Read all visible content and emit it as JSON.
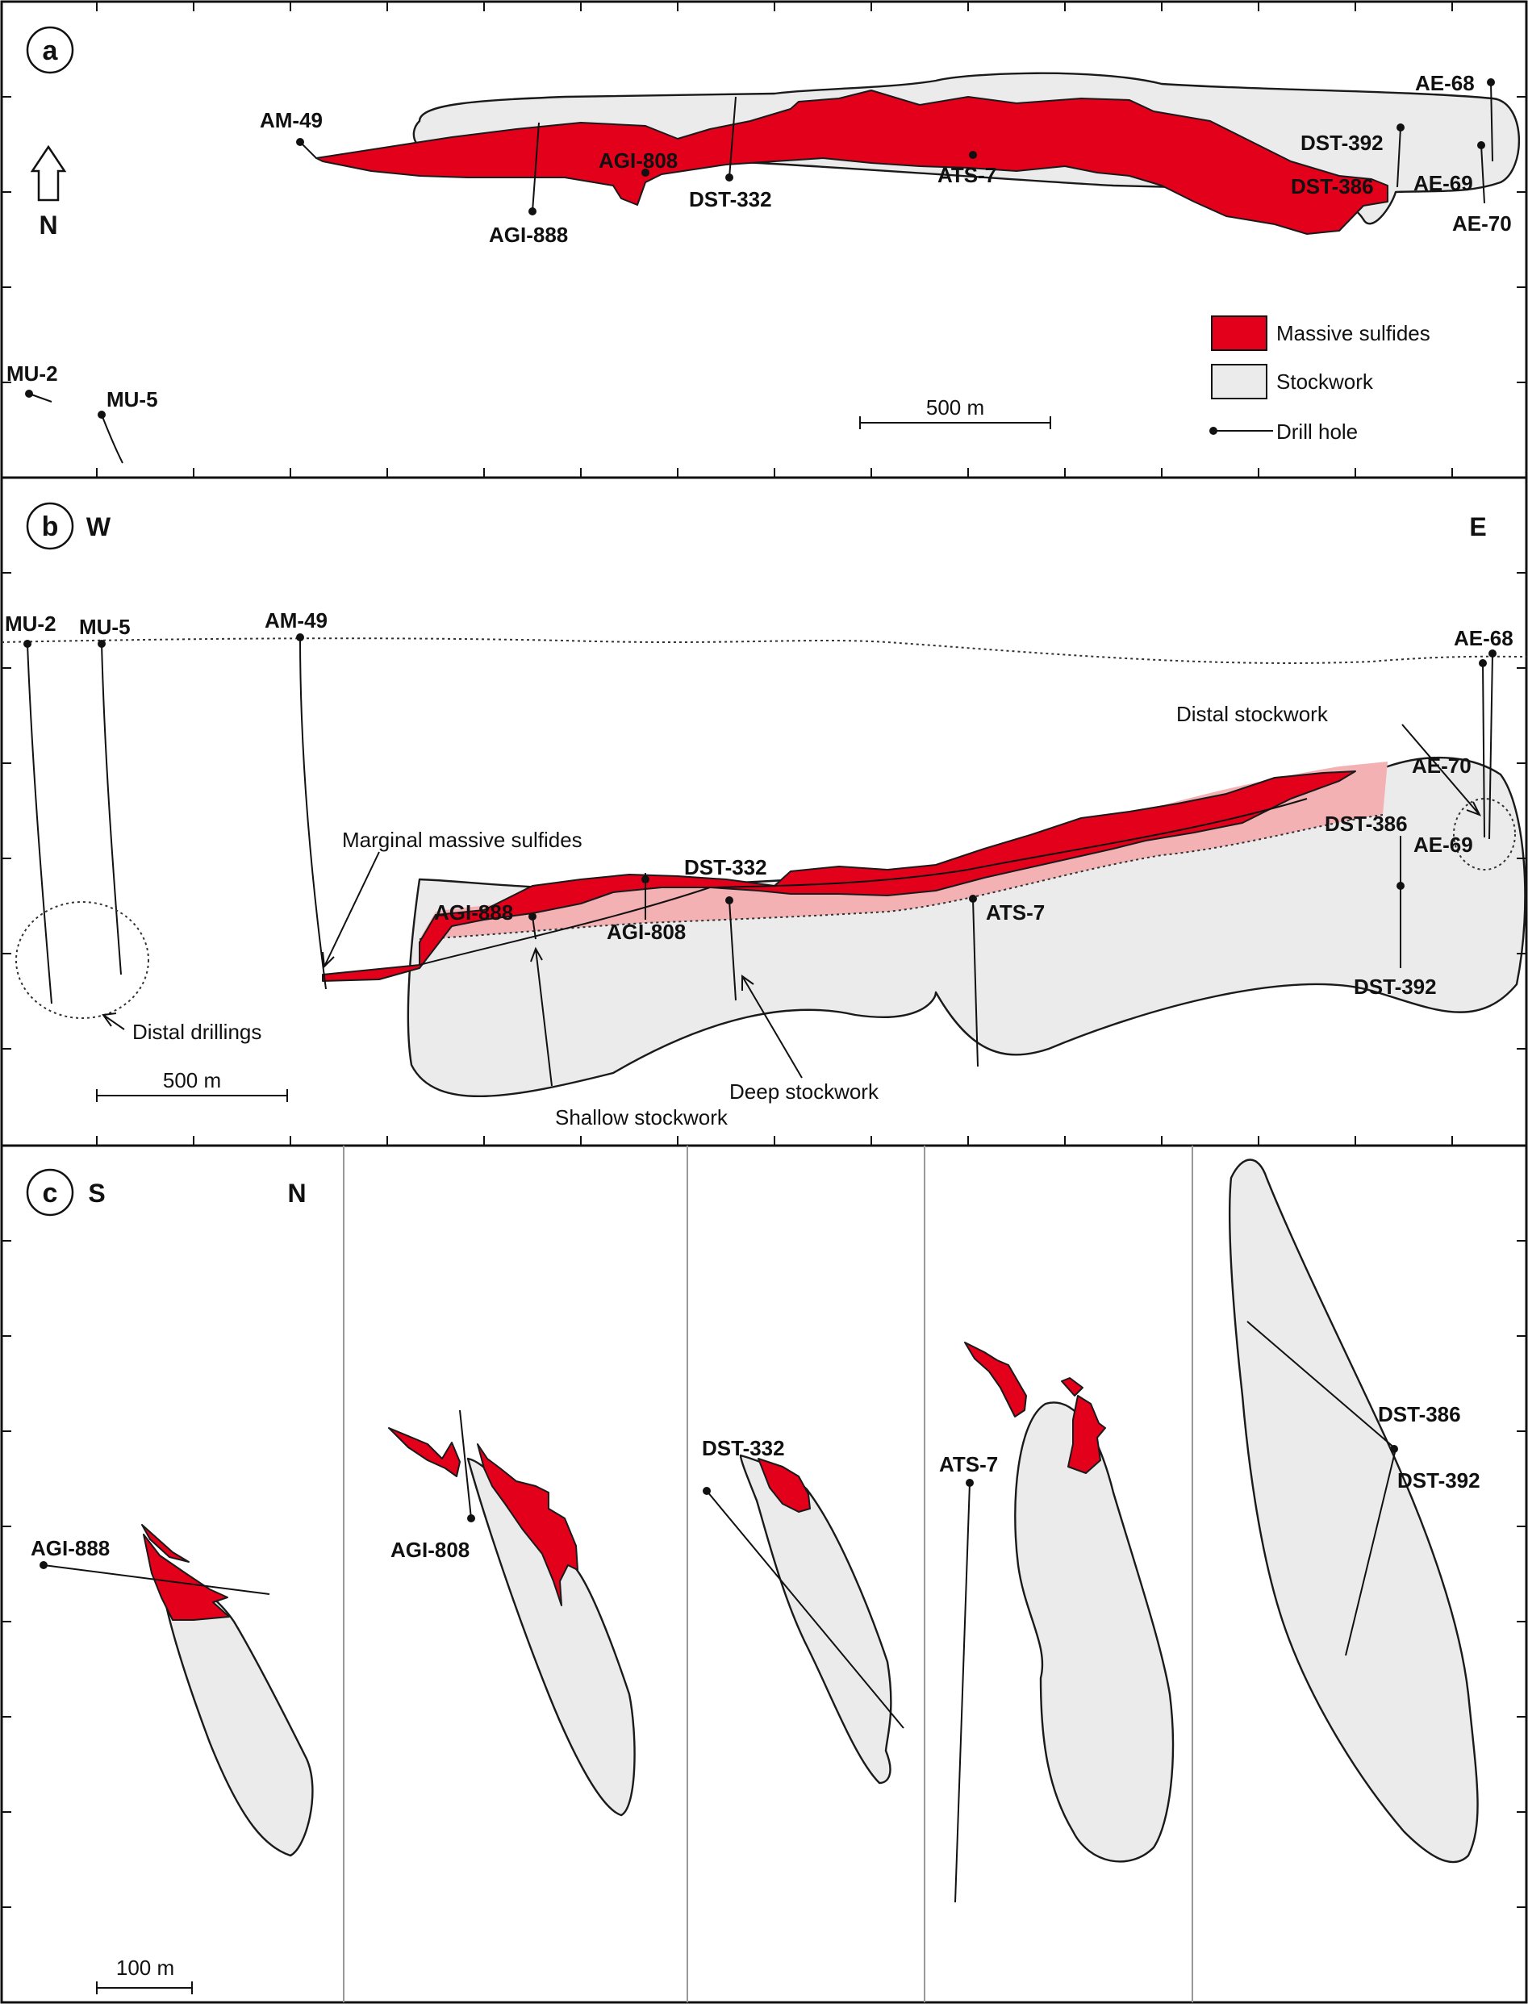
{
  "panels": {
    "a": {
      "letter": "a",
      "north": "N",
      "scale": "500 m",
      "legend": {
        "massive": "Massive sulfides",
        "stockwork": "Stockwork",
        "drill": "Drill hole"
      },
      "holes": {
        "am49": "AM-49",
        "agi888": "AGI-888",
        "agi808": "AGI-808",
        "dst332": "DST-332",
        "ats7": "ATS-7",
        "dst392": "DST-392",
        "dst386": "DST-386",
        "ae68": "AE-68",
        "ae69": "AE-69",
        "ae70": "AE-70",
        "mu2": "MU-2",
        "mu5": "MU-5"
      }
    },
    "b": {
      "letter": "b",
      "west": "W",
      "east": "E",
      "scale": "500 m",
      "holes": {
        "mu2": "MU-2",
        "mu5": "MU-5",
        "am49": "AM-49",
        "ae68": "AE-68",
        "ae70": "AE-70",
        "dst386": "DST-386",
        "ae69": "AE-69",
        "dst392": "DST-392",
        "agi888": "AGI-888",
        "dst332": "DST-332",
        "agi808": "AGI-808",
        "ats7": "ATS-7"
      },
      "notes": {
        "distal_stockwork": "Distal stockwork",
        "marginal": "Marginal massive sulfides",
        "distal_drillings": "Distal drillings",
        "deep_stockwork": "Deep stockwork",
        "shallow_stockwork": "Shallow stockwork"
      }
    },
    "c": {
      "letter": "c",
      "south": "S",
      "north": "N",
      "scale": "100 m",
      "holes": {
        "agi888": "AGI-888",
        "agi808": "AGI-808",
        "dst332": "DST-332",
        "ats7": "ATS-7",
        "dst386": "DST-386",
        "dst392": "DST-392"
      }
    }
  }
}
